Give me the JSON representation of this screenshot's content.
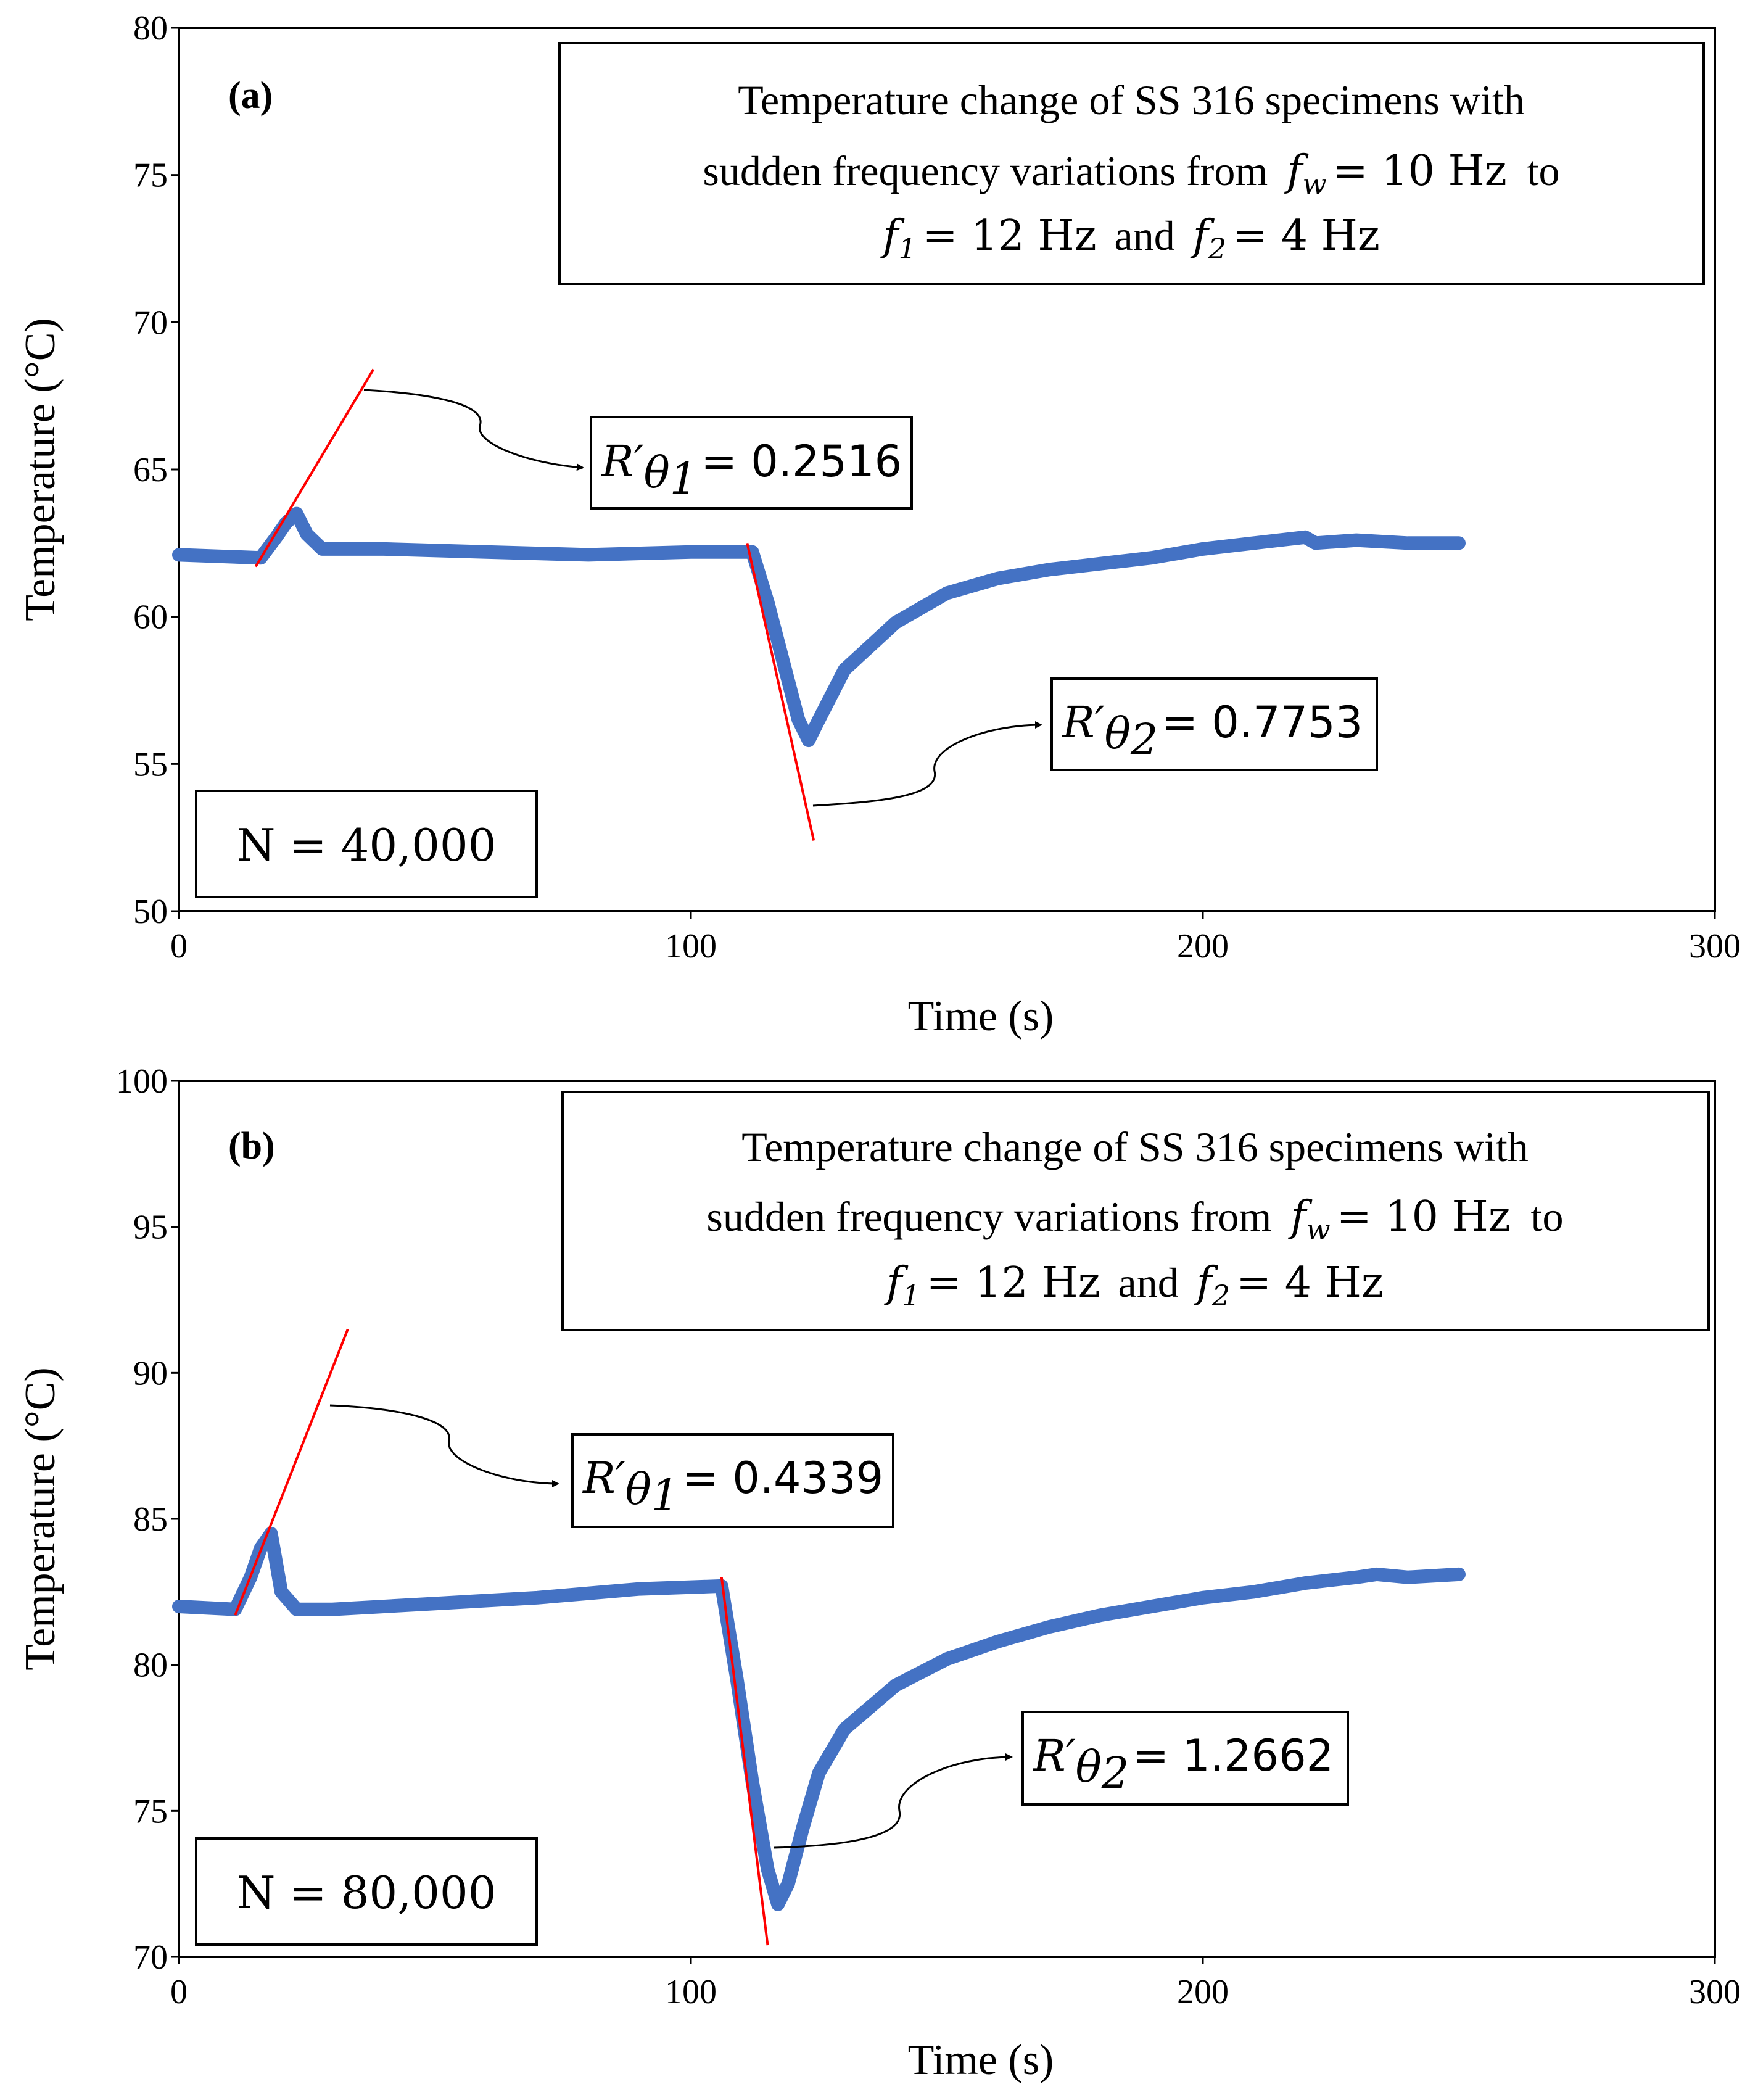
{
  "chart_data": [
    {
      "type": "line",
      "panel_label": "(a)",
      "xlabel": "Time (s)",
      "ylabel": "Temperature (°C)",
      "xlim": [
        0,
        300
      ],
      "ylim": [
        50,
        80
      ],
      "xticks": [
        0,
        100,
        200,
        300
      ],
      "yticks": [
        50,
        55,
        60,
        65,
        70,
        75,
        80
      ],
      "title_lines": [
        "Temperature change of SS 316 specimens with",
        "sudden frequency variations from",
        "to",
        "and"
      ],
      "freq": {
        "fw": "f",
        "fw_sub": "w",
        "fw_val": "= 10 Hz",
        "f1": "f",
        "f1_sub": "1",
        "f1_val": "= 12 Hz",
        "f2": "f",
        "f2_sub": "2",
        "f2_val": "= 4 Hz"
      },
      "n_label": "N = 40,000",
      "baseline": 62.2,
      "series": {
        "name": "Temperature",
        "color": "#4472C4",
        "x": [
          0,
          16,
          19,
          21,
          23,
          25,
          28,
          40,
          60,
          80,
          100,
          112,
          115,
          118,
          121,
          123,
          125,
          130,
          140,
          150,
          160,
          170,
          180,
          190,
          200,
          210,
          220,
          222,
          230,
          240,
          250
        ],
        "y": [
          62.1,
          62.0,
          62.7,
          63.2,
          63.5,
          62.8,
          62.3,
          62.3,
          62.2,
          62.1,
          62.2,
          62.2,
          60.5,
          58.5,
          56.5,
          55.8,
          56.5,
          58.2,
          59.8,
          60.8,
          61.3,
          61.6,
          61.8,
          62.0,
          62.3,
          62.5,
          62.7,
          62.5,
          62.6,
          62.5,
          62.5
        ]
      },
      "tangents": [
        {
          "x": [
            15,
            38
          ],
          "y": [
            61.7,
            68.4
          ],
          "color": "#FF0000"
        },
        {
          "x": [
            111,
            124
          ],
          "y": [
            62.5,
            52.4
          ],
          "color": "#FF0000"
        }
      ],
      "rates": [
        {
          "symbol": "R′",
          "sub": "θ",
          "subsub": "1",
          "value": "= 0.2516"
        },
        {
          "symbol": "R′",
          "sub": "θ",
          "subsub": "2",
          "value": "= 0.7753"
        }
      ]
    },
    {
      "type": "line",
      "panel_label": "(b)",
      "xlabel": "Time (s)",
      "ylabel": "Temperature (°C)",
      "xlim": [
        0,
        300
      ],
      "ylim": [
        70,
        100
      ],
      "xticks": [
        0,
        100,
        200,
        300
      ],
      "yticks": [
        70,
        75,
        80,
        85,
        90,
        95,
        100
      ],
      "title_lines": [
        "Temperature change of SS 316 specimens with",
        "sudden frequency variations from",
        "to",
        "and"
      ],
      "freq": {
        "fw": "f",
        "fw_sub": "w",
        "fw_val": "= 10 Hz",
        "f1": "f",
        "f1_sub": "1",
        "f1_val": "= 12 Hz",
        "f2": "f",
        "f2_sub": "2",
        "f2_val": "= 4 Hz"
      },
      "n_label": "N = 80,000",
      "baseline": 82.2,
      "series": {
        "name": "Temperature",
        "color": "#4472C4",
        "x": [
          0,
          11,
          14,
          16,
          18,
          20,
          23,
          30,
          50,
          70,
          90,
          106,
          109,
          112,
          115,
          117,
          119,
          122,
          125,
          130,
          140,
          150,
          160,
          170,
          180,
          190,
          200,
          210,
          220,
          230,
          234,
          240,
          250
        ],
        "y": [
          82.0,
          81.9,
          83.0,
          84.0,
          84.5,
          82.5,
          81.9,
          81.9,
          82.1,
          82.3,
          82.6,
          82.7,
          79.5,
          76.0,
          73.0,
          71.8,
          72.5,
          74.5,
          76.3,
          77.8,
          79.3,
          80.2,
          80.8,
          81.3,
          81.7,
          82.0,
          82.3,
          82.5,
          82.8,
          83.0,
          83.1,
          83.0,
          83.1
        ]
      },
      "tangents": [
        {
          "x": [
            11,
            33
          ],
          "y": [
            81.7,
            91.5
          ],
          "color": "#FF0000"
        },
        {
          "x": [
            106,
            115
          ],
          "y": [
            83.0,
            70.4
          ],
          "color": "#FF0000"
        }
      ],
      "rates": [
        {
          "symbol": "R′",
          "sub": "θ",
          "subsub": "1",
          "value": "= 0.4339"
        },
        {
          "symbol": "R′",
          "sub": "θ",
          "subsub": "2",
          "value": "= 1.2662"
        }
      ]
    }
  ]
}
